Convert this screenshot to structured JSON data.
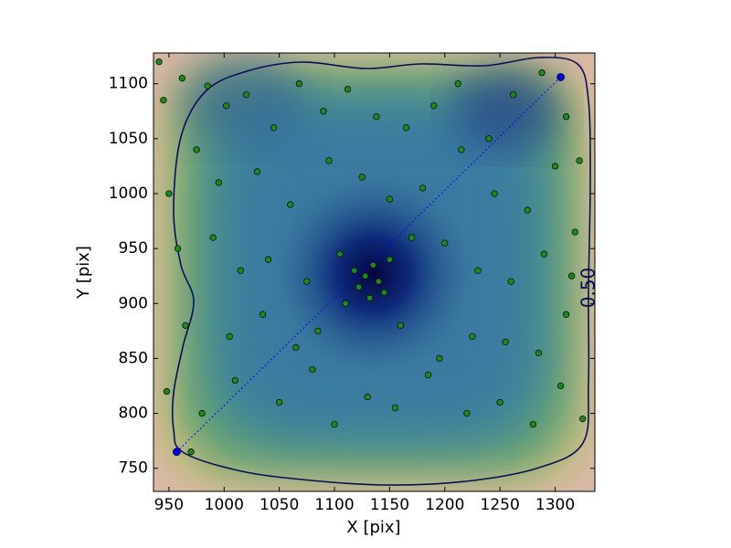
{
  "chart_data": {
    "type": "scatter",
    "xlabel": "X [pix]",
    "ylabel": "Y [pix]",
    "xlim": [
      936,
      1336
    ],
    "ylim": [
      729,
      1128
    ],
    "xticks": [
      950,
      1000,
      1050,
      1100,
      1150,
      1200,
      1250,
      1300
    ],
    "yticks": [
      750,
      800,
      850,
      900,
      950,
      1000,
      1050,
      1100
    ],
    "contour_label": "0.50",
    "series": [
      {
        "color": "#1a8a1a",
        "marker": "circle",
        "x": [
          941,
          945,
          962,
          985,
          1002,
          1020,
          1045,
          1068,
          1090,
          1112,
          1138,
          1165,
          1190,
          1212,
          1240,
          1262,
          1288,
          1310,
          1322,
          950,
          975,
          995,
          1030,
          1060,
          1095,
          1125,
          1150,
          1180,
          1215,
          1245,
          1275,
          1300,
          1318,
          958,
          990,
          1015,
          1040,
          1075,
          1105,
          1118,
          1122,
          1128,
          1132,
          1135,
          1140,
          1145,
          1110,
          1150,
          1170,
          1200,
          1230,
          1260,
          1290,
          1315,
          965,
          1005,
          1035,
          1065,
          1085,
          1160,
          1195,
          1225,
          1255,
          1285,
          1310,
          948,
          980,
          1010,
          1050,
          1080,
          1100,
          1130,
          1155,
          1185,
          1220,
          1250,
          1280,
          1305,
          1325,
          970
        ],
        "values": [
          1120,
          1085,
          1105,
          1098,
          1080,
          1090,
          1060,
          1100,
          1075,
          1095,
          1070,
          1060,
          1080,
          1100,
          1050,
          1090,
          1110,
          1070,
          1030,
          1000,
          1040,
          1010,
          1020,
          990,
          1030,
          1015,
          995,
          1005,
          1040,
          1000,
          985,
          1025,
          965,
          950,
          960,
          930,
          940,
          920,
          945,
          930,
          915,
          925,
          905,
          935,
          920,
          910,
          900,
          940,
          960,
          955,
          930,
          920,
          945,
          925,
          880,
          870,
          890,
          860,
          875,
          880,
          850,
          870,
          865,
          855,
          890,
          820,
          800,
          830,
          810,
          840,
          790,
          815,
          805,
          835,
          800,
          810,
          790,
          825,
          795,
          765
        ]
      },
      {
        "color": "#0000ff",
        "marker": "circle",
        "linestyle": "dotted",
        "x": [
          957,
          1305
        ],
        "values": [
          765,
          1106
        ]
      }
    ]
  }
}
